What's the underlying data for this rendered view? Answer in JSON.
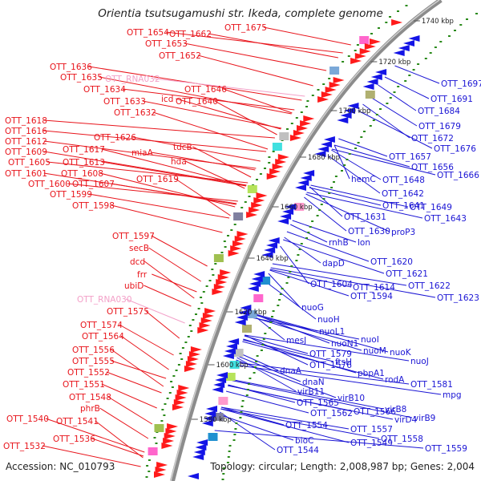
{
  "title": "Orientia tsutsugamushi str. Ikeda, complete genome",
  "footer": {
    "accession": "Accession: NC_010793",
    "summary": "Topology: circular; Length: 2,008,987 bp; Genes: 2,004"
  },
  "colors": {
    "forward_label": "#e8141b",
    "reverse_label": "#1a14d4",
    "rna_label": "#f3a0c8",
    "forward_arrow": "#ff1a1a",
    "reverse_arrow": "#1414e6",
    "backbone": "#888888",
    "gc_dots": "#2a8a1a"
  },
  "kbp_ticks": [
    "1740 kbp",
    "1720 kbp",
    "1700 kbp",
    "1680 kbp",
    "1660 kbp",
    "1640 kbp",
    "1620 kbp",
    "1600 kbp",
    "1580 kbp"
  ],
  "left_labels": [
    {
      "text": "OTT_1675",
      "kind": "gene"
    },
    {
      "text": "OTT_1654",
      "kind": "gene"
    },
    {
      "text": "OTT_1662",
      "kind": "gene"
    },
    {
      "text": "OTT_1653",
      "kind": "gene"
    },
    {
      "text": "OTT_1652",
      "kind": "gene"
    },
    {
      "text": "OTT_1636",
      "kind": "gene"
    },
    {
      "text": "OTT_1635",
      "kind": "gene"
    },
    {
      "text": "OTT_RNA032",
      "kind": "rna"
    },
    {
      "text": "OTT_1634",
      "kind": "gene"
    },
    {
      "text": "OTT_1646",
      "kind": "gene"
    },
    {
      "text": "OTT_1633",
      "kind": "gene"
    },
    {
      "text": "icd",
      "kind": "gene"
    },
    {
      "text": "OTT_1640",
      "kind": "gene"
    },
    {
      "text": "OTT_1632",
      "kind": "gene"
    },
    {
      "text": "OTT_1618",
      "kind": "gene"
    },
    {
      "text": "OTT_1616",
      "kind": "gene"
    },
    {
      "text": "OTT_1626",
      "kind": "gene"
    },
    {
      "text": "OTT_1612",
      "kind": "gene"
    },
    {
      "text": "tdcB",
      "kind": "gene"
    },
    {
      "text": "OTT_1609",
      "kind": "gene"
    },
    {
      "text": "OTT_1617",
      "kind": "gene"
    },
    {
      "text": "miaA",
      "kind": "gene"
    },
    {
      "text": "OTT_1605",
      "kind": "gene"
    },
    {
      "text": "OTT_1613",
      "kind": "gene"
    },
    {
      "text": "hda",
      "kind": "gene"
    },
    {
      "text": "OTT_1601",
      "kind": "gene"
    },
    {
      "text": "OTT_1608",
      "kind": "gene"
    },
    {
      "text": "OTT_1619",
      "kind": "gene"
    },
    {
      "text": "OTT_1600",
      "kind": "gene"
    },
    {
      "text": "OTT_1607",
      "kind": "gene"
    },
    {
      "text": "OTT_1599",
      "kind": "gene"
    },
    {
      "text": "OTT_1598",
      "kind": "gene"
    },
    {
      "text": "OTT_1597",
      "kind": "gene"
    },
    {
      "text": "secB",
      "kind": "gene"
    },
    {
      "text": "dcd",
      "kind": "gene"
    },
    {
      "text": "frr",
      "kind": "gene"
    },
    {
      "text": "ubiD",
      "kind": "gene"
    },
    {
      "text": "OTT_RNA030",
      "kind": "rna"
    },
    {
      "text": "OTT_1575",
      "kind": "gene"
    },
    {
      "text": "OTT_1574",
      "kind": "gene"
    },
    {
      "text": "OTT_1564",
      "kind": "gene"
    },
    {
      "text": "OTT_1556",
      "kind": "gene"
    },
    {
      "text": "OTT_1555",
      "kind": "gene"
    },
    {
      "text": "OTT_1552",
      "kind": "gene"
    },
    {
      "text": "OTT_1551",
      "kind": "gene"
    },
    {
      "text": "OTT_1548",
      "kind": "gene"
    },
    {
      "text": "phrB",
      "kind": "gene"
    },
    {
      "text": "OTT_1540",
      "kind": "gene"
    },
    {
      "text": "OTT_1541",
      "kind": "gene"
    },
    {
      "text": "OTT_1536",
      "kind": "gene"
    },
    {
      "text": "OTT_1532",
      "kind": "gene"
    }
  ],
  "right_labels": [
    {
      "text": "OTT_1697"
    },
    {
      "text": "OTT_1691"
    },
    {
      "text": "OTT_1684"
    },
    {
      "text": "OTT_1679"
    },
    {
      "text": "OTT_1672"
    },
    {
      "text": "OTT_1676"
    },
    {
      "text": "OTT_1657"
    },
    {
      "text": "OTT_1656"
    },
    {
      "text": "OTT_1666"
    },
    {
      "text": "OTT_1648"
    },
    {
      "text": "hemC"
    },
    {
      "text": "OTT_1642"
    },
    {
      "text": "OTT_1641"
    },
    {
      "text": "OTT_1649"
    },
    {
      "text": "OTT_1643"
    },
    {
      "text": "OTT_1631"
    },
    {
      "text": "OTT_1630"
    },
    {
      "text": "proP3"
    },
    {
      "text": "rnhB"
    },
    {
      "text": "lon"
    },
    {
      "text": "dapD"
    },
    {
      "text": "OTT_1620"
    },
    {
      "text": "OTT_1621"
    },
    {
      "text": "OTT_1604"
    },
    {
      "text": "OTT_1614"
    },
    {
      "text": "OTT_1622"
    },
    {
      "text": "OTT_1594"
    },
    {
      "text": "OTT_1623"
    },
    {
      "text": "nuoG"
    },
    {
      "text": "nuoH"
    },
    {
      "text": "nuoL1"
    },
    {
      "text": "nuoI"
    },
    {
      "text": "mesJ"
    },
    {
      "text": "nuoN1"
    },
    {
      "text": "nuoM"
    },
    {
      "text": "nuoK"
    },
    {
      "text": "OTT_1579"
    },
    {
      "text": "ftsH"
    },
    {
      "text": "nuoJ"
    },
    {
      "text": "OTT_1576"
    },
    {
      "text": "pbpA1"
    },
    {
      "text": "rodA"
    },
    {
      "text": "dnaA"
    },
    {
      "text": "OTT_1581"
    },
    {
      "text": "dnaN"
    },
    {
      "text": "mpg"
    },
    {
      "text": "virB11"
    },
    {
      "text": "virB10"
    },
    {
      "text": "OTT_1565"
    },
    {
      "text": "OTT_1562"
    },
    {
      "text": "OTT_1566"
    },
    {
      "text": "virB8"
    },
    {
      "text": "virD4"
    },
    {
      "text": "virB9"
    },
    {
      "text": "OTT_1554"
    },
    {
      "text": "OTT_1557"
    },
    {
      "text": "bioC"
    },
    {
      "text": "OTT_1558"
    },
    {
      "text": "OTT_1549"
    },
    {
      "text": "OTT_1544"
    },
    {
      "text": "OTT_1559"
    }
  ]
}
